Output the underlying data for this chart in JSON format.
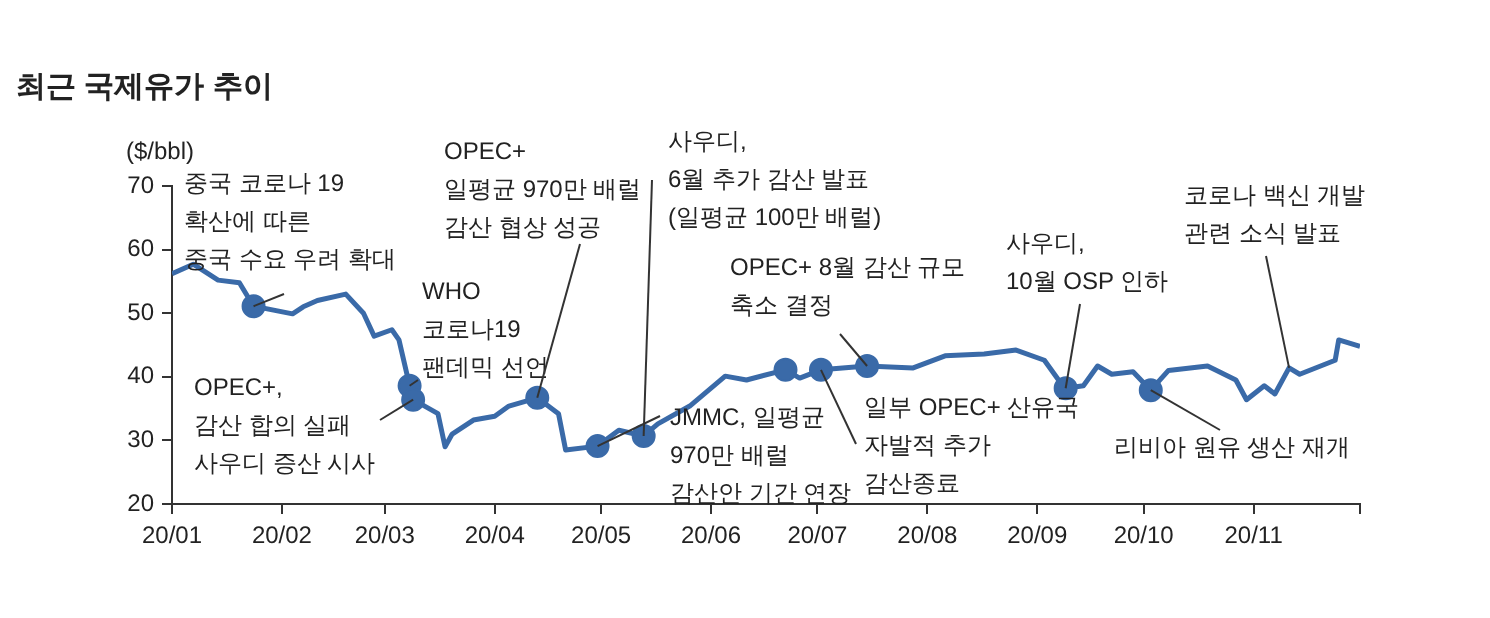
{
  "chart_data": {
    "type": "line",
    "title": "최근 국제유가 추이",
    "ylabel": "($/bbl)",
    "x": [
      "--01-01",
      "--01-07",
      "--01-14",
      "--01-20",
      "--01-24",
      "--02-04",
      "--02-07",
      "--02-11",
      "--02-19",
      "--02-24",
      "--02-27",
      "--03-03",
      "--03-05",
      "--03-08",
      "--03-09",
      "--03-16",
      "--03-18",
      "--03-20",
      "--03-26",
      "--04-01",
      "--04-05",
      "--04-13",
      "--04-19",
      "--04-21",
      "--04-30",
      "--05-06",
      "--05-13",
      "--05-17",
      "--05-26",
      "--06-05",
      "--06-11",
      "--06-22",
      "--06-26",
      "--07-02",
      "--07-15",
      "--07-28",
      "--08-06",
      "--08-17",
      "--08-26",
      "--09-03",
      "--09-07",
      "--09-09",
      "--09-14",
      "--09-18",
      "--09-22",
      "--09-28",
      "--10-03",
      "--10-08",
      "--10-19",
      "--10-27",
      "--10-30",
      "--11-04",
      "--11-07",
      "--11-11",
      "--11-14",
      "--11-24",
      "--11-25",
      "--12-01"
    ],
    "series": [
      {
        "type": "line",
        "color": "#3a6aa8",
        "marker": "none",
        "values": [
          56.2,
          57.7,
          55.2,
          54.8,
          51.1,
          49.9,
          51.0,
          52.0,
          53.0,
          50.0,
          46.4,
          47.4,
          45.8,
          38.6,
          36.4,
          34.2,
          29.0,
          31.0,
          33.2,
          33.8,
          35.4,
          36.7,
          34.2,
          28.5,
          29.1,
          31.6,
          30.7,
          32.6,
          35.4,
          40.1,
          39.5,
          41.1,
          39.8,
          41.1,
          41.7,
          41.4,
          43.3,
          43.6,
          44.2,
          42.6,
          39.5,
          38.2,
          38.6,
          41.7,
          40.4,
          40.8,
          37.9,
          41.0,
          41.7,
          39.5,
          36.4,
          38.6,
          37.3,
          41.4,
          40.4,
          42.6,
          45.8,
          44.8
        ]
      },
      {
        "type": "scatter",
        "color": "#3a6aa8",
        "marker": "circle",
        "x": [
          "--01-24",
          "--03-08",
          "--03-09",
          "--04-13",
          "--04-30",
          "--05-13",
          "--06-22",
          "--07-02",
          "--07-15",
          "--09-09",
          "--10-03"
        ],
        "values": [
          51.1,
          38.6,
          36.4,
          36.7,
          29.1,
          30.7,
          41.1,
          41.1,
          41.7,
          38.2,
          37.9
        ]
      }
    ],
    "xlim": [
      "--01-01",
      "--12-01"
    ],
    "xticks": [
      {
        "value": "--01-01",
        "label": "20/01"
      },
      {
        "value": "--02-01",
        "label": "20/02"
      },
      {
        "value": "--03-01",
        "label": "20/03"
      },
      {
        "value": "--04-01",
        "label": "20/04"
      },
      {
        "value": "--05-01",
        "label": "20/05"
      },
      {
        "value": "--06-01",
        "label": "20/06"
      },
      {
        "value": "--07-01",
        "label": "20/07"
      },
      {
        "value": "--08-01",
        "label": "20/08"
      },
      {
        "value": "--09-01",
        "label": "20/09"
      },
      {
        "value": "--10-01",
        "label": "20/10"
      },
      {
        "value": "--11-01",
        "label": "20/11"
      },
      {
        "value": "--12-01",
        "label": null
      }
    ],
    "ylim": [
      20,
      70
    ],
    "yticks": [
      20,
      30,
      40,
      50,
      60,
      70
    ],
    "grid": false,
    "legend": false,
    "line_style": "solid",
    "annotations": [
      {
        "text": "중국 코로나 19\n확산에 따른\n중국 수요 우려 확대",
        "x": "--01-24",
        "y": 51.1
      },
      {
        "text": "OPEC+,\n감산 합의 실패\n사우디 증산 시사",
        "x": "--03-09",
        "y": 36.4
      },
      {
        "text": "WHO\n코로나19\n팬데믹 선언",
        "x": "--03-08",
        "y": 38.6
      },
      {
        "text": "OPEC+\n일평균 970만 배럴\n감산 협상 성공",
        "x": "--04-13",
        "y": 36.7
      },
      {
        "text": "사우디,\n6월 추가 감산 발표\n(일평균 100만 배럴)",
        "x": "--05-13",
        "y": 30.7
      },
      {
        "text": "JMMC, 일평균\n970만 배럴\n감산안 기간 연장",
        "x": "--04-30",
        "y": 29.1
      },
      {
        "text": "OPEC+ 8월 감산 규모\n축소 결정",
        "x": "--07-15",
        "y": 41.7
      },
      {
        "text": "일부 OPEC+ 산유국\n자발적 추가\n감산종료",
        "x": "--07-02",
        "y": 41.1
      },
      {
        "text": "사우디,\n10월 OSP 인하",
        "x": "--09-09",
        "y": 38.2
      },
      {
        "text": "리비아 원유 생산 재개",
        "x": "--10-03",
        "y": 37.9
      },
      {
        "text": "코로나 백신 개발\n관련 소식 발표",
        "x": "--11-11",
        "y": 41.4
      }
    ]
  }
}
